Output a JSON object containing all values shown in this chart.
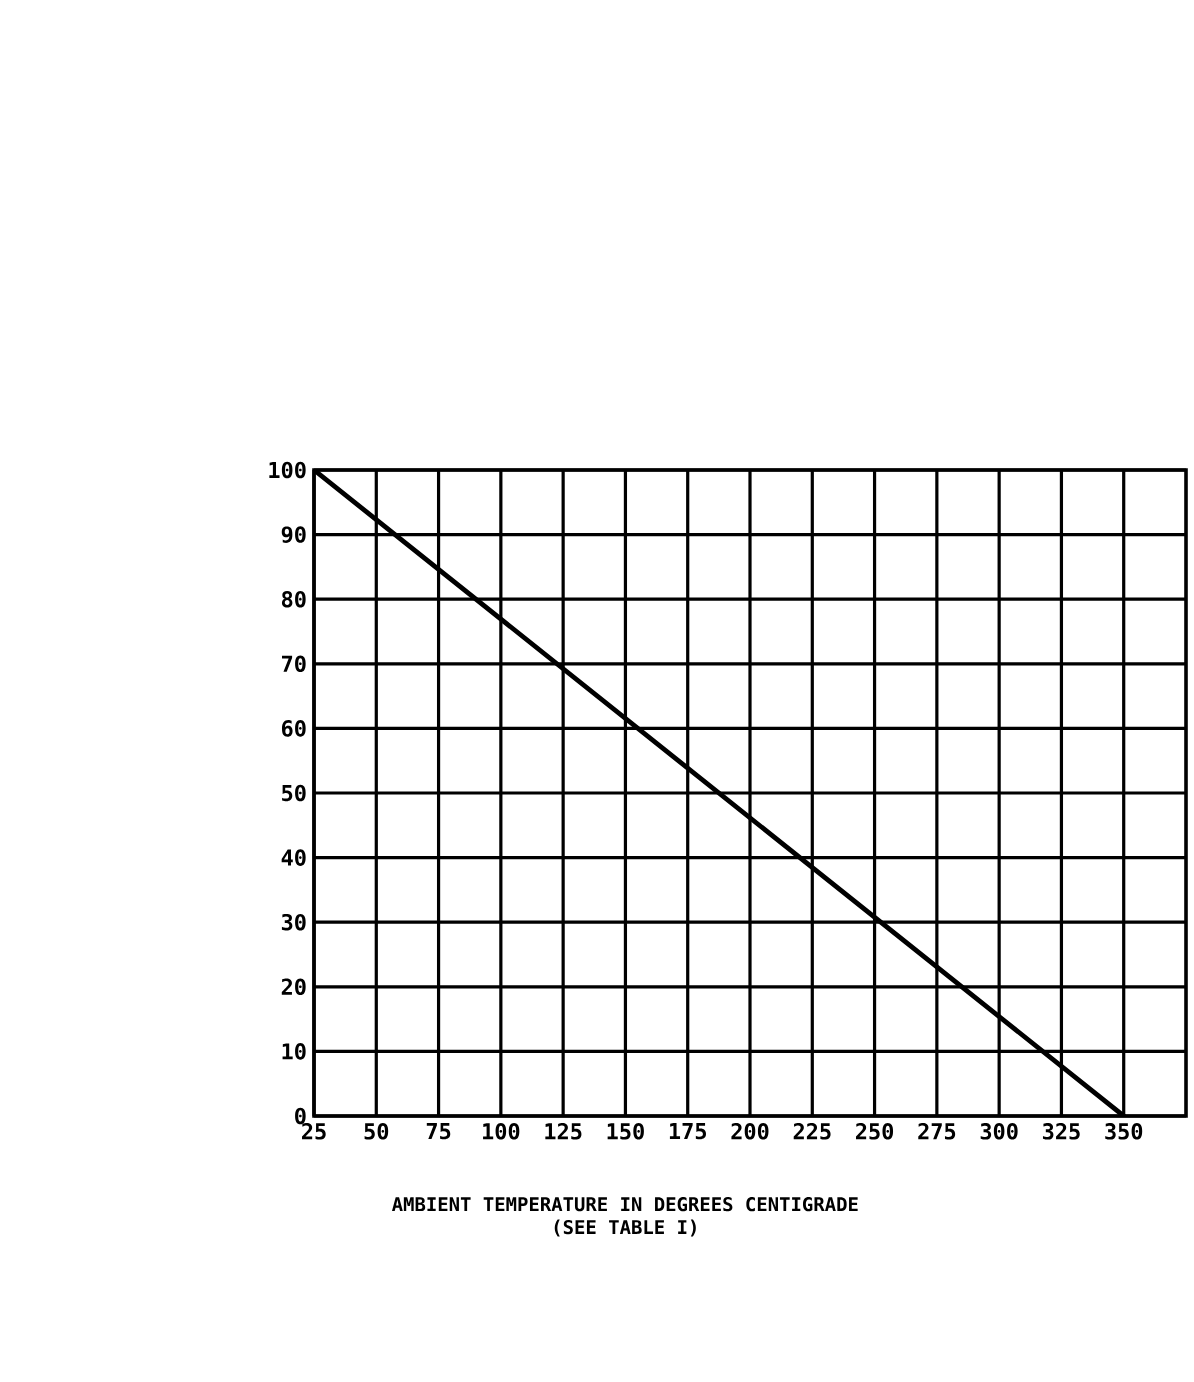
{
  "chart_data": {
    "type": "line",
    "xlabel": "AMBIENT TEMPERATURE IN DEGREES CENTIGRADE",
    "annotations": [
      "(SEE TABLE I)"
    ],
    "x": [
      25,
      350
    ],
    "series": [
      {
        "color": "#000000",
        "values": [
          100,
          0
        ]
      }
    ],
    "xlim": [
      25,
      375
    ],
    "xticks": [
      25,
      50,
      75,
      100,
      125,
      150,
      175,
      200,
      225,
      250,
      275,
      300,
      325,
      350
    ],
    "ylim": [
      0,
      100
    ],
    "yticks": [
      0,
      10,
      20,
      30,
      40,
      50,
      60,
      70,
      80,
      90,
      100
    ],
    "grid": true,
    "marker": "none",
    "line_style": "solid"
  }
}
